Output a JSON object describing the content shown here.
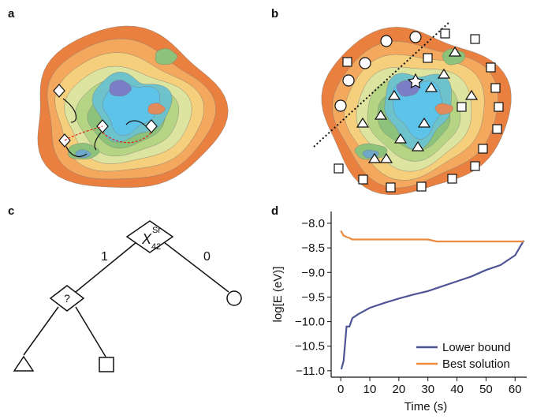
{
  "panel_labels": [
    "a",
    "b",
    "c",
    "d"
  ],
  "tree": {
    "root": {
      "symbol": "X",
      "superscript": "Sr",
      "subscript": "42"
    },
    "left_edge": "1",
    "right_edge": "0",
    "child": "?"
  },
  "chart_data": {
    "type": "line",
    "ylabel": "log[E (eV)]",
    "xlabel": "Time (s)",
    "xlim": [
      -3.3,
      64
    ],
    "ylim": [
      -11.13,
      -7.76
    ],
    "xticks": [
      0,
      10,
      20,
      30,
      40,
      50,
      60
    ],
    "yticks": [
      {
        "value": -8.0,
        "label": "−8.0"
      },
      {
        "value": -8.5,
        "label": "−8.5"
      },
      {
        "value": -9.0,
        "label": "−9.0"
      },
      {
        "value": -9.5,
        "label": "−9.5"
      },
      {
        "value": -10.0,
        "label": "−10.0"
      },
      {
        "value": -10.5,
        "label": "−10.5"
      },
      {
        "value": -11.0,
        "label": "−11.0"
      }
    ],
    "legend": "lower right",
    "series": [
      {
        "name": "Lower bound",
        "color": "#4e5596",
        "x": [
          0.2,
          1,
          2,
          3,
          4,
          6,
          10,
          15,
          20,
          25,
          30,
          35,
          40,
          45,
          50,
          55,
          60,
          63
        ],
        "values": [
          -10.97,
          -10.8,
          -10.1,
          -10.1,
          -9.93,
          -9.85,
          -9.72,
          -9.62,
          -9.53,
          -9.45,
          -9.38,
          -9.28,
          -9.18,
          -9.08,
          -8.95,
          -8.85,
          -8.65,
          -8.35
        ]
      },
      {
        "name": "Best solution",
        "color": "#ee8a3c",
        "x": [
          0,
          1,
          2,
          3,
          4,
          10,
          30,
          33,
          63
        ],
        "values": [
          -8.15,
          -8.25,
          -8.28,
          -8.3,
          -8.33,
          -8.33,
          -8.33,
          -8.37,
          -8.37
        ]
      }
    ]
  }
}
